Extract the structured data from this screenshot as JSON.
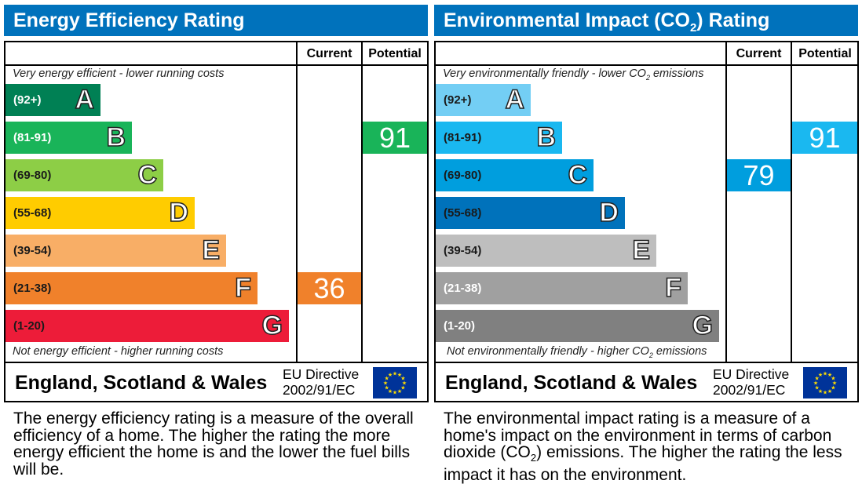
{
  "chart_data": [
    {
      "type": "bar",
      "title": "Energy Efficiency Rating",
      "column_headers": [
        "Current",
        "Potential"
      ],
      "top_note": "Very energy efficient - lower running costs",
      "bottom_note": "Not energy efficient - higher running costs",
      "bands": [
        {
          "letter": "A",
          "range": "(92+)",
          "color": "#008054",
          "text_color": "#ffffff"
        },
        {
          "letter": "B",
          "range": "(81-91)",
          "color": "#19b459",
          "text_color": "#ffffff"
        },
        {
          "letter": "C",
          "range": "(69-80)",
          "color": "#8dce46",
          "text_color": "#1a1a1a"
        },
        {
          "letter": "D",
          "range": "(55-68)",
          "color": "#ffcc00",
          "text_color": "#1a1a1a"
        },
        {
          "letter": "E",
          "range": "(39-54)",
          "color": "#f8ae66",
          "text_color": "#1a1a1a"
        },
        {
          "letter": "F",
          "range": "(21-38)",
          "color": "#f0812b",
          "text_color": "#1a1a1a"
        },
        {
          "letter": "G",
          "range": "(1-20)",
          "color": "#ed1c39",
          "text_color": "#1a1a1a"
        }
      ],
      "current": {
        "value": "36",
        "band": "F",
        "color": "#f0812b"
      },
      "potential": {
        "value": "91",
        "band": "B",
        "color": "#19b459"
      },
      "footer_country": "England, Scotland & Wales",
      "footer_directive_line1": "EU Directive",
      "footer_directive_line2": "2002/91/EC",
      "description": "The energy efficiency rating is a measure of the overall efficiency of a home. The higher the rating the more energy efficient the home is and the lower the fuel bills will be."
    },
    {
      "type": "bar",
      "title_prefix": "Environmental Impact (CO",
      "title_sub": "2",
      "title_suffix": ") Rating",
      "column_headers": [
        "Current",
        "Potential"
      ],
      "top_note_prefix": "Very environmentally friendly - lower CO",
      "top_note_sub": "2",
      "top_note_suffix": " emissions",
      "bottom_note_prefix": "Not environmentally friendly - higher CO",
      "bottom_note_sub": "2",
      "bottom_note_suffix": " emissions",
      "bands": [
        {
          "letter": "A",
          "range": "(92+)",
          "color": "#73cef4",
          "text_color": "#1a1a1a"
        },
        {
          "letter": "B",
          "range": "(81-91)",
          "color": "#1ab8f0",
          "text_color": "#1a1a1a"
        },
        {
          "letter": "C",
          "range": "(69-80)",
          "color": "#009ede",
          "text_color": "#1a1a1a"
        },
        {
          "letter": "D",
          "range": "(55-68)",
          "color": "#0072bb",
          "text_color": "#1a1a1a"
        },
        {
          "letter": "E",
          "range": "(39-54)",
          "color": "#bebebe",
          "text_color": "#1a1a1a"
        },
        {
          "letter": "F",
          "range": "(21-38)",
          "color": "#a0a0a0",
          "text_color": "#ffffff"
        },
        {
          "letter": "G",
          "range": "(1-20)",
          "color": "#808080",
          "text_color": "#ffffff"
        }
      ],
      "current": {
        "value": "79",
        "band": "C",
        "color": "#009ede"
      },
      "potential": {
        "value": "91",
        "band": "B",
        "color": "#1ab8f0"
      },
      "footer_country": "England, Scotland & Wales",
      "footer_directive_line1": "EU Directive",
      "footer_directive_line2": "2002/91/EC",
      "description_part1": "The environmental impact rating is a measure of a home's impact on the environment in terms of carbon dioxide (CO",
      "description_sub": "2",
      "description_part2": ") emissions. The higher the rating the less impact it has on the environment."
    }
  ]
}
